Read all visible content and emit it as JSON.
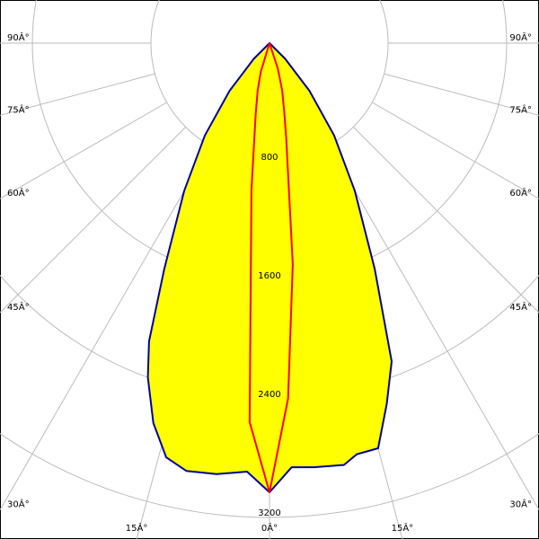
{
  "chart_data": {
    "type": "polar",
    "x": [
      -50,
      -45,
      -40,
      -35,
      -30,
      -25,
      -22,
      -20,
      -17,
      -14,
      -11,
      -7,
      -3,
      0,
      3,
      6,
      10,
      12,
      15,
      18,
      21,
      25,
      30,
      35,
      40,
      45,
      50
    ],
    "series": [
      {
        "color": "#0000a0",
        "fill": "#ffff00",
        "values": [
          0,
          150,
          420,
          760,
          1150,
          1680,
          2170,
          2400,
          2680,
          2880,
          2940,
          2930,
          2895,
          3030,
          2865,
          2877,
          2890,
          2835,
          2830,
          2560,
          2300,
          1680,
          1150,
          760,
          420,
          150,
          0
        ]
      },
      {
        "color": "#ff0000",
        "values": [
          null,
          null,
          null,
          null,
          null,
          null,
          null,
          0,
          200,
          330,
          490,
          1000,
          2560,
          3030,
          2400,
          1500,
          650,
          480,
          330,
          180,
          0,
          null,
          null,
          null,
          null,
          null,
          null
        ]
      }
    ],
    "rlim": [
      0,
      3200
    ],
    "rticks": [
      800,
      1600,
      2400,
      3200
    ],
    "angle_ticks": [
      {
        "value": 0,
        "label": "0Â°"
      },
      {
        "value": 15,
        "label": "15Â°"
      },
      {
        "value": 30,
        "label": "30Â°"
      },
      {
        "value": 45,
        "label": "45Â°"
      },
      {
        "value": 60,
        "label": "60Â°"
      },
      {
        "value": 75,
        "label": "75Â°"
      },
      {
        "value": 90,
        "label": "90Â°"
      }
    ],
    "grid": true
  }
}
